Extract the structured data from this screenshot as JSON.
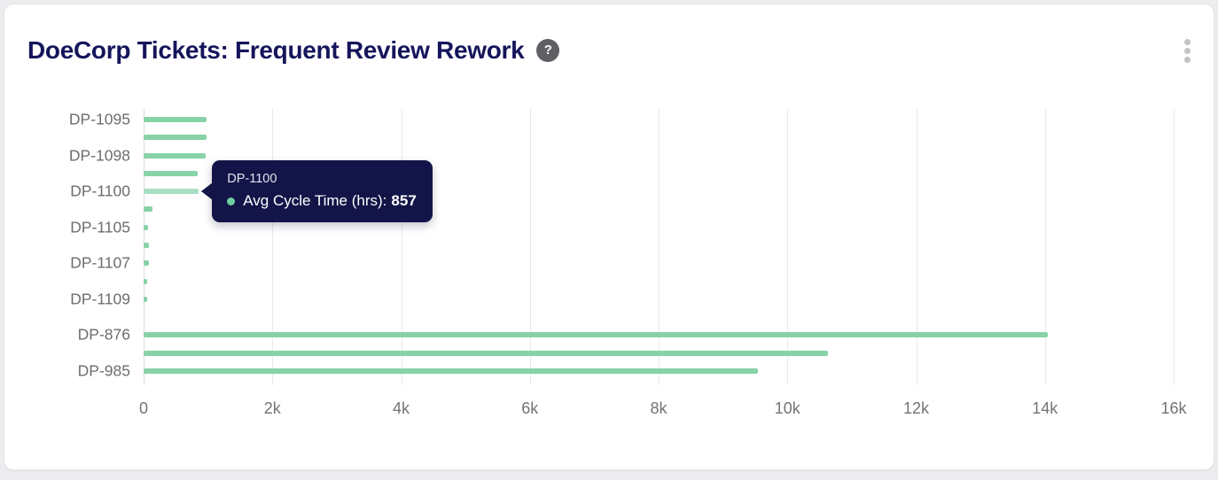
{
  "header": {
    "title": "DoeCorp Tickets: Frequent Review Rework",
    "help_icon_glyph": "?",
    "menu_icon": "kebab-vertical"
  },
  "tooltip": {
    "title": "DP-1100",
    "series_label": "Avg Cycle Time (hrs):",
    "value": "857",
    "bg_color": "#131548",
    "dot_color": "#6fcf9f"
  },
  "chart_data": {
    "type": "bar",
    "orientation": "horizontal",
    "series_name": "Avg Cycle Time (hrs)",
    "bars": [
      {
        "label": "DP-1095",
        "value": 980
      },
      {
        "label": "",
        "value": 975
      },
      {
        "label": "DP-1098",
        "value": 960
      },
      {
        "label": "",
        "value": 845
      },
      {
        "label": "DP-1100",
        "value": 857,
        "highlighted": true
      },
      {
        "label": "",
        "value": 140
      },
      {
        "label": "DP-1105",
        "value": 75
      },
      {
        "label": "",
        "value": 85
      },
      {
        "label": "DP-1107",
        "value": 85
      },
      {
        "label": "",
        "value": 60
      },
      {
        "label": "DP-1109",
        "value": 60
      },
      {
        "label": "",
        "value": 0
      },
      {
        "label": "DP-876",
        "value": 14050
      },
      {
        "label": "",
        "value": 10630
      },
      {
        "label": "DP-985",
        "value": 9540
      }
    ],
    "x_axis": {
      "min": 0,
      "max": 16000,
      "tick_labels": [
        "0",
        "2k",
        "4k",
        "6k",
        "8k",
        "10k",
        "12k",
        "14k",
        "16k"
      ],
      "tick_values": [
        0,
        2000,
        4000,
        6000,
        8000,
        10000,
        12000,
        14000,
        16000
      ],
      "grid": true
    },
    "bar_color": "#87d2a6",
    "bar_highlight_color": "#aadec4",
    "tooltip_anchor_index": 4
  }
}
